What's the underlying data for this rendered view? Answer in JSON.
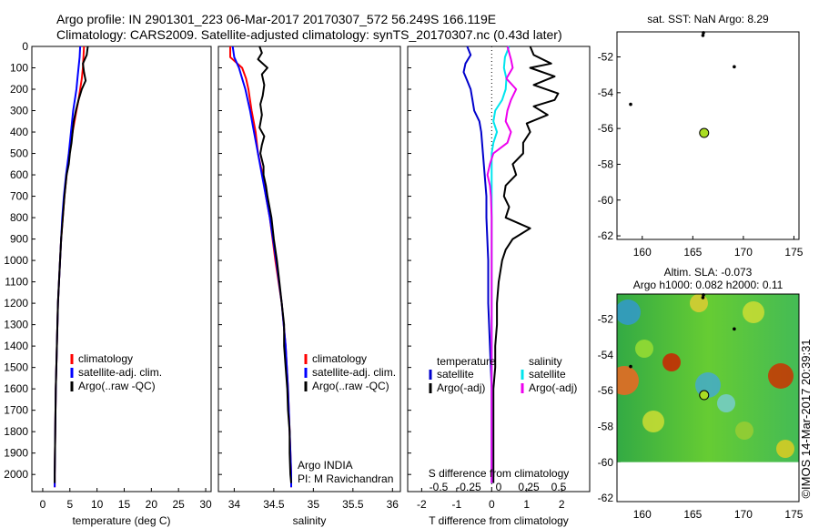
{
  "header": {
    "line1": "Argo profile: IN 2901301_223 06-Mar-2017 20170307_572 56.249S 166.119E",
    "line2": "Climatology: CARS2009. Satellite-adjusted climatology: synTS_20170307.nc (0.43d later)"
  },
  "colors": {
    "climatology": "#ff0000",
    "satellite": "#0000ff",
    "argo": "#000000",
    "t_satellite": "#0000cc",
    "s_satellite": "#00e5ee",
    "s_argo": "#ee00ee",
    "float_marker": "#aadd22"
  },
  "chart_data": [
    {
      "type": "line",
      "xlabel": "temperature (deg C)",
      "xlim": [
        -2,
        31
      ],
      "xticks": [
        0,
        5,
        10,
        15,
        20,
        25,
        30
      ],
      "ylim": [
        2080,
        0
      ],
      "yticks": [
        0,
        100,
        200,
        300,
        400,
        500,
        600,
        700,
        800,
        900,
        1000,
        1100,
        1200,
        1300,
        1400,
        1500,
        1600,
        1700,
        1800,
        1900,
        2000
      ],
      "legend": [
        "climatology",
        "satellite-adj. clim.",
        "Argo(..raw -QC)"
      ],
      "series": [
        {
          "name": "climatology",
          "depth": [
            0,
            50,
            100,
            150,
            200,
            250,
            300,
            400,
            500,
            600,
            700,
            800,
            900,
            1000,
            1200,
            1400,
            1600,
            1800,
            2000,
            2060
          ],
          "values": [
            7.6,
            7.5,
            7.4,
            7.2,
            6.9,
            6.6,
            6.2,
            5.5,
            4.9,
            4.4,
            4.0,
            3.7,
            3.4,
            3.2,
            2.8,
            2.6,
            2.4,
            2.3,
            2.2,
            2.2
          ]
        },
        {
          "name": "satellite-adj. clim.",
          "depth": [
            0,
            50,
            100,
            150,
            200,
            250,
            300,
            400,
            500,
            600,
            700,
            800,
            900,
            1000,
            1200,
            1400,
            1600,
            1800,
            2000,
            2060
          ],
          "values": [
            6.9,
            6.8,
            6.6,
            6.4,
            6.2,
            5.9,
            5.6,
            5.2,
            4.8,
            4.3,
            3.9,
            3.6,
            3.4,
            3.2,
            2.8,
            2.6,
            2.4,
            2.3,
            2.2,
            2.2
          ]
        },
        {
          "name": "Argo(..raw -QC)",
          "depth": [
            0,
            40,
            80,
            120,
            160,
            200,
            250,
            300,
            350,
            400,
            450,
            500,
            550,
            600,
            700,
            800,
            900,
            1000,
            1200,
            1400,
            1600,
            1800,
            2000,
            2040
          ],
          "values": [
            8.3,
            8.1,
            7.4,
            7.6,
            7.9,
            7.2,
            6.6,
            6.1,
            5.7,
            5.5,
            5.3,
            5.0,
            4.8,
            4.4,
            4.0,
            3.7,
            3.4,
            3.2,
            2.8,
            2.6,
            2.4,
            2.3,
            2.2,
            2.2
          ]
        }
      ]
    },
    {
      "type": "line",
      "xlabel": "salinity",
      "xlim": [
        33.8,
        36.1
      ],
      "xticks": [
        34,
        34.5,
        35,
        35.5,
        36
      ],
      "ylim": [
        2080,
        0
      ],
      "legend": [
        "climatology",
        "satellite-adj. clim.",
        "Argo(..raw -QC)"
      ],
      "annotation": [
        "Argo INDIA",
        "PI: M Ravichandran"
      ],
      "series": [
        {
          "name": "climatology",
          "depth": [
            0,
            50,
            100,
            150,
            200,
            300,
            400,
            500,
            600,
            700,
            800,
            1000,
            1200,
            1400,
            1600,
            1800,
            2000,
            2060
          ],
          "values": [
            33.95,
            33.95,
            34.1,
            34.15,
            34.18,
            34.22,
            34.27,
            34.3,
            34.36,
            34.4,
            34.45,
            34.52,
            34.6,
            34.65,
            34.68,
            34.7,
            34.72,
            34.72
          ]
        },
        {
          "name": "satellite-adj. clim.",
          "depth": [
            0,
            50,
            100,
            150,
            200,
            300,
            400,
            500,
            600,
            700,
            800,
            1000,
            1200,
            1400,
            1600,
            1800,
            2000,
            2060
          ],
          "values": [
            33.98,
            34.0,
            34.06,
            34.1,
            34.14,
            34.2,
            34.25,
            34.3,
            34.35,
            34.4,
            34.45,
            34.53,
            34.6,
            34.65,
            34.68,
            34.7,
            34.72,
            34.72
          ]
        },
        {
          "name": "Argo(..raw -QC)",
          "depth": [
            0,
            30,
            60,
            100,
            130,
            180,
            230,
            270,
            320,
            380,
            420,
            460,
            500,
            560,
            600,
            650,
            700,
            800,
            900,
            1000,
            1100,
            1200,
            1300,
            1400,
            1500,
            1600,
            1700,
            1800,
            1900,
            2000,
            2040
          ],
          "values": [
            34.32,
            34.35,
            34.3,
            34.42,
            34.35,
            34.38,
            34.36,
            34.33,
            34.35,
            34.32,
            34.38,
            34.35,
            34.33,
            34.37,
            34.37,
            34.4,
            34.42,
            34.47,
            34.5,
            34.54,
            34.57,
            34.6,
            34.63,
            34.63,
            34.65,
            34.67,
            34.68,
            34.7,
            34.7,
            34.71,
            34.72
          ]
        }
      ]
    },
    {
      "type": "line",
      "xlabel": "T difference from climatology",
      "xlabel2": "S difference from climatology",
      "xlim": [
        -2.4,
        2.8
      ],
      "xticks": [
        -2,
        -1,
        0,
        1,
        2
      ],
      "s_ticks": [
        -0.5,
        -0.25,
        0,
        0.25,
        0.5
      ],
      "s_tick_labels": [
        "-0.5",
        "-0.25",
        "0",
        "0.25",
        "0.5"
      ],
      "ylim": [
        2080,
        0
      ],
      "legend_temperature_title": "temperature",
      "legend_salinity_title": "salinity",
      "legend_labels": [
        "satellite",
        "Argo(-adj)",
        "satellite",
        "Argo(-adj)"
      ],
      "series": [
        {
          "name": "temperature satellite",
          "depth": [
            0,
            40,
            80,
            120,
            160,
            200,
            250,
            300,
            350,
            400,
            500,
            600,
            700,
            800,
            1000,
            1200,
            1400,
            1600,
            1800,
            2000,
            2040
          ],
          "values": [
            -0.7,
            -0.6,
            -0.75,
            -0.8,
            -0.7,
            -0.6,
            -0.55,
            -0.5,
            -0.35,
            -0.3,
            -0.25,
            -0.2,
            -0.15,
            -0.15,
            -0.1,
            -0.1,
            -0.05,
            0,
            0,
            0,
            0
          ]
        },
        {
          "name": "temperature Argo(-adj)",
          "depth": [
            0,
            40,
            80,
            100,
            140,
            180,
            220,
            250,
            280,
            320,
            360,
            400,
            450,
            500,
            550,
            600,
            650,
            700,
            750,
            800,
            850,
            900,
            950,
            1000,
            1100,
            1200,
            1300,
            1400,
            1500,
            1600,
            1700,
            1800,
            1900,
            2000,
            2040
          ],
          "values": [
            1.1,
            1.2,
            1.7,
            1.1,
            1.8,
            1.2,
            1.9,
            1.8,
            1.2,
            1.6,
            1.0,
            1.1,
            0.9,
            0.9,
            0.6,
            0.7,
            0.4,
            0.35,
            0.5,
            0.4,
            1.1,
            0.6,
            0.4,
            0.3,
            0.2,
            0.15,
            0.15,
            0.1,
            0.1,
            0.05,
            0.05,
            0.05,
            0.05,
            0.05,
            0.05
          ]
        },
        {
          "name": "salinity satellite",
          "depth": [
            0,
            50,
            100,
            150,
            200,
            250,
            300,
            350,
            400,
            450,
            500,
            600,
            700,
            800,
            1000,
            1200,
            1400,
            1600,
            1800,
            2000,
            2040
          ],
          "values": [
            0.5,
            0.38,
            0.35,
            0.42,
            0.4,
            0.3,
            0.1,
            0.05,
            0.15,
            0.05,
            0,
            0,
            0,
            0,
            0,
            0,
            0,
            0,
            0,
            0,
            0
          ]
        },
        {
          "name": "salinity Argo(-adj)",
          "depth": [
            0,
            60,
            100,
            150,
            200,
            250,
            300,
            350,
            400,
            450,
            500,
            550,
            600,
            650,
            700,
            800,
            900,
            1000,
            1200,
            1400,
            1600,
            1800,
            2000,
            2040
          ],
          "values": [
            0.45,
            0.55,
            0.6,
            0.42,
            0.7,
            0.55,
            0.45,
            0.4,
            0.55,
            0.45,
            0.05,
            -0.05,
            -0.12,
            -0.05,
            -0.02,
            0,
            0,
            0,
            0,
            0,
            0,
            0,
            0,
            0
          ]
        }
      ]
    },
    {
      "type": "scatter",
      "title": "sat. SST: NaN Argo: 8.29",
      "xlim": [
        157.5,
        175.5
      ],
      "ylim": [
        -62.2,
        -50.6
      ],
      "xticks": [
        160,
        165,
        170,
        175
      ],
      "yticks": [
        -52,
        -54,
        -56,
        -58,
        -60,
        -62
      ],
      "float_position": [
        166.119,
        -56.249
      ]
    },
    {
      "type": "heatmap",
      "title_line1": "Altim. SLA: -0.073",
      "title_line2": "Argo h1000: 0.082 h2000: 0.11",
      "xlim": [
        157.5,
        175.5
      ],
      "ylim": [
        -62.2,
        -50.6
      ],
      "data_ylim": [
        -60,
        -50.6
      ],
      "xticks": [
        160,
        165,
        170,
        175
      ],
      "yticks": [
        -52,
        -54,
        -56,
        -58,
        -60,
        -62
      ],
      "float_position": [
        166.119,
        -56.249
      ]
    }
  ],
  "footer": {
    "stamp": "©IMOS 14-Mar-2017 20:39:31"
  }
}
